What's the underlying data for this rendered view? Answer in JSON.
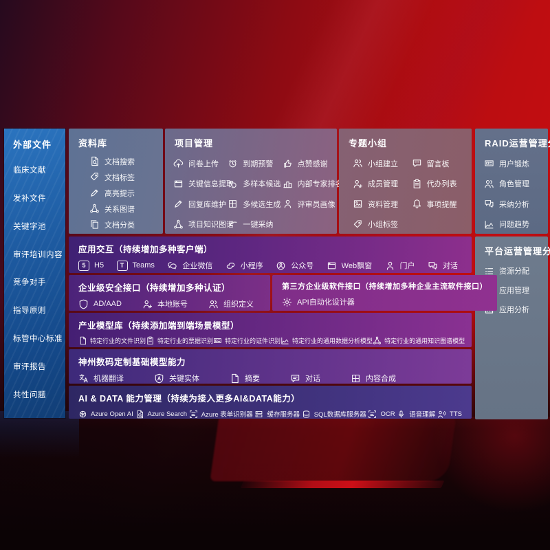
{
  "palette": {
    "background_red": "#b60d11",
    "background_dark": "#0b0305",
    "sidebar_blue": "#1d5aa0",
    "panel_slate": "#64708a",
    "band_purple_dark": "#3f2174",
    "band_magenta": "#8d2f8d",
    "band_indigo": "#2e2763"
  },
  "sidebar": {
    "title": "外部文件",
    "items": [
      "临床文献",
      "发补文件",
      "关键字池",
      "审评培训内容",
      "竞争对手",
      "指导原则",
      "标管中心标准",
      "审评报告",
      "共性问题"
    ]
  },
  "top_panels": [
    {
      "title": "资料库",
      "items": [
        {
          "icon": "doc-search",
          "label": "文档搜索"
        },
        {
          "icon": "tag",
          "label": "文档标签"
        },
        {
          "icon": "pencil",
          "label": "高亮提示"
        },
        {
          "icon": "network",
          "label": "关系图谱"
        },
        {
          "icon": "copy",
          "label": "文档分类"
        }
      ]
    },
    {
      "title": "项目管理",
      "items": [
        {
          "icon": "cloud-up",
          "label": "问卷上传"
        },
        {
          "icon": "window",
          "label": "关键信息提取"
        },
        {
          "icon": "pencil",
          "label": "回复库维护"
        },
        {
          "icon": "network",
          "label": "项目知识图谱"
        },
        {
          "icon": "alarm",
          "label": "到期预警"
        },
        {
          "icon": "reply",
          "label": "多样本候选"
        },
        {
          "icon": "grid-plus",
          "label": "多候选生成"
        },
        {
          "icon": "swoosh",
          "label": "一键采纳"
        },
        {
          "icon": "thumb",
          "label": "点赞感谢"
        },
        {
          "icon": "podium",
          "label": "内部专家排名"
        },
        {
          "icon": "person",
          "label": "评审员画像"
        }
      ]
    },
    {
      "title": "专题小组",
      "items": [
        {
          "icon": "people",
          "label": "小组建立"
        },
        {
          "icon": "person-plus",
          "label": "成员管理"
        },
        {
          "icon": "album",
          "label": "资料管理"
        },
        {
          "icon": "tag",
          "label": "小组标签"
        },
        {
          "icon": "bbs",
          "label": "留言板"
        },
        {
          "icon": "clipboard",
          "label": "代办列表"
        },
        {
          "icon": "bell",
          "label": "事项提醒"
        }
      ]
    }
  ],
  "right_panels": [
    {
      "title": "RAID运营管理分析",
      "items": [
        {
          "icon": "idcard",
          "label": "用户锻炼"
        },
        {
          "icon": "people",
          "label": "角色管理"
        },
        {
          "icon": "chat-qa",
          "label": "采纳分析"
        },
        {
          "icon": "trend",
          "label": "问题趋势"
        }
      ]
    },
    {
      "title": "平台运营管理分析",
      "items": [
        {
          "icon": "list",
          "label": "资源分配"
        },
        {
          "icon": "grid",
          "label": "应用管理"
        },
        {
          "icon": "album",
          "label": "应用分析"
        }
      ]
    }
  ],
  "bands": [
    {
      "title": "应用交互（持续增加多种客户端）",
      "items": [
        {
          "icon": "h5-badge",
          "label": "H5"
        },
        {
          "icon": "teams-badge",
          "label": "Teams"
        },
        {
          "icon": "wechat",
          "label": "企业微信"
        },
        {
          "icon": "mini-program",
          "label": "小程序"
        },
        {
          "icon": "pub-account",
          "label": "公众号"
        },
        {
          "icon": "window",
          "label": "Web飘窗"
        },
        {
          "icon": "person",
          "label": "门户"
        },
        {
          "icon": "chat-qa",
          "label": "对话"
        }
      ]
    },
    {
      "title": "企业级安全接口（持续增加多种认证）",
      "items": [
        {
          "icon": "shield",
          "label": "AD/AAD"
        },
        {
          "icon": "person-plus",
          "label": "本地账号"
        },
        {
          "icon": "people",
          "label": "组织定义"
        }
      ]
    },
    {
      "title": "第三方企业级软件接口（持续增加多种企业主流软件接口）",
      "items": [
        {
          "icon": "gear",
          "label": "API自动化设计器"
        }
      ]
    },
    {
      "title": "产业模型库（持续添加端到端场景模型）",
      "items": [
        {
          "icon": "doc",
          "label": "特定行业的文件识别"
        },
        {
          "icon": "clipboard",
          "label": "特定行业的票据识别"
        },
        {
          "icon": "idcard",
          "label": "特定行业的证件识别"
        },
        {
          "icon": "trend",
          "label": "特定行业的通用数据分析模型"
        },
        {
          "icon": "network",
          "label": "特定行业的通用知识图谱模型"
        }
      ]
    },
    {
      "title": "神州数码定制基础模型能力",
      "items": [
        {
          "icon": "translate",
          "label": "机器翻译"
        },
        {
          "icon": "shield-a",
          "label": "关键实体"
        },
        {
          "icon": "doc",
          "label": "摘要"
        },
        {
          "icon": "bubble",
          "label": "对话"
        },
        {
          "icon": "grid-plus",
          "label": "内容合成"
        }
      ]
    },
    {
      "title": "AI & DATA 能力管理（持续为接入更多AI&DATA能力）",
      "items": [
        {
          "icon": "openai",
          "label": "Azure Open AI"
        },
        {
          "icon": "doc-search",
          "label": "Azure Search"
        },
        {
          "icon": "ocr",
          "label": "Azure 表单识别器"
        },
        {
          "icon": "server",
          "label": "缓存服务器"
        },
        {
          "icon": "db",
          "label": "SQL数据库服务器"
        },
        {
          "icon": "ocr",
          "label": "OCR"
        },
        {
          "icon": "voice",
          "label": "语音理解"
        },
        {
          "icon": "tts",
          "label": "TTS"
        }
      ]
    }
  ]
}
